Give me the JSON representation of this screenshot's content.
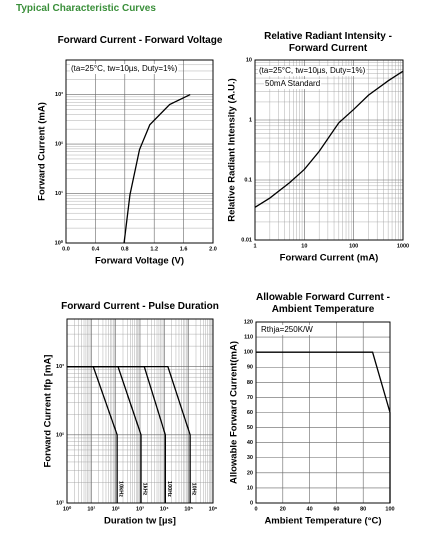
{
  "page_title": "Typical Characteristic Curves",
  "chart_data": [
    {
      "type": "line",
      "title": "Forward Current - Forward Voltage",
      "x_label": "Forward Voltage (V)",
      "y_label": "Forward Current (mA)",
      "annotations": [
        "(ta=25°C, tw=10µs, Duty=1%)"
      ],
      "xscale": "linear",
      "yscale": "log",
      "grid": true,
      "xlim": [
        0,
        2
      ],
      "xticks": [
        {
          "value": 0,
          "label": "0.0"
        },
        0.4,
        0.8,
        1.2,
        1.6,
        {
          "value": 2,
          "label": "2.0"
        }
      ],
      "ylim": [
        1,
        5000
      ],
      "yticks": [
        {
          "value": 1,
          "label": "10⁰"
        },
        {
          "value": 10,
          "label": "10¹"
        },
        {
          "value": 100,
          "label": "10²"
        },
        {
          "value": 1000,
          "label": "10³"
        }
      ],
      "series": [
        {
          "color": "#000000",
          "x": [
            0.79,
            0.87,
            1.0,
            1.14,
            1.41,
            1.69
          ],
          "values": [
            1,
            9.4,
            77,
            245,
            630,
            1000
          ]
        }
      ]
    },
    {
      "type": "line",
      "title": "Relative Radiant Intensity - Forward Current",
      "x_label": "Forward Current (mA)",
      "y_label": "Relative Radiant Intensity (A.U.)",
      "annotations": [
        "(ta=25°C, tw=10µs, Duty=1%)",
        "50mA Standard"
      ],
      "xscale": "log",
      "yscale": "log",
      "grid": true,
      "xlim": [
        1,
        1000
      ],
      "xticks": [
        1,
        10,
        100,
        1000
      ],
      "ylim": [
        0.01,
        10
      ],
      "yticks": [
        0.01,
        0.1,
        1,
        10
      ],
      "series": [
        {
          "color": "#000000",
          "x": [
            1,
            2,
            5,
            10,
            20,
            50,
            100,
            200,
            500,
            1000
          ],
          "values": [
            0.035,
            0.05,
            0.09,
            0.15,
            0.3,
            0.9,
            1.5,
            2.6,
            4.5,
            6.5
          ]
        }
      ]
    },
    {
      "type": "line",
      "title": "Forward Current - Pulse Duration",
      "x_label": "Duration tw [µs]",
      "y_label": "Forward Current Ifp [mA]",
      "annotations": [],
      "xscale": "log",
      "yscale": "log",
      "grid": true,
      "xlim": [
        1,
        1000000
      ],
      "xticks": [
        {
          "value": 1,
          "label": "10⁰"
        },
        {
          "value": 10,
          "label": "10¹"
        },
        {
          "value": 100,
          "label": "10²"
        },
        {
          "value": 1000,
          "label": "10³"
        },
        {
          "value": 10000,
          "label": "10⁴"
        },
        {
          "value": 100000,
          "label": "10⁵"
        },
        {
          "value": 1000000,
          "label": "10⁶"
        }
      ],
      "ylim": [
        10,
        5000
      ],
      "yticks": [
        {
          "value": 10,
          "label": "10¹"
        },
        {
          "value": 100,
          "label": "10²"
        },
        {
          "value": 1000,
          "label": "10³"
        }
      ],
      "series": [
        {
          "name": "10kHz",
          "color": "#000000",
          "x": [
            1,
            12,
            115,
            115
          ],
          "values": [
            1000,
            1000,
            100,
            10
          ]
        },
        {
          "name": "1kHz",
          "color": "#000000",
          "x": [
            1,
            125,
            1100,
            1100
          ],
          "values": [
            1000,
            1000,
            100,
            10
          ]
        },
        {
          "name": "100Hz",
          "color": "#000000",
          "x": [
            1,
            1500,
            11000,
            11000
          ],
          "values": [
            1000,
            1000,
            100,
            10
          ]
        },
        {
          "name": "10Hz",
          "color": "#000000",
          "x": [
            1,
            14000,
            115000,
            115000
          ],
          "values": [
            1000,
            1000,
            100,
            10
          ]
        }
      ]
    },
    {
      "type": "line",
      "title": "Allowable Forward Current - Ambient Temperature",
      "x_label": "Ambient Temperature (°C)",
      "y_label": "Allowable Forward Current(mA)",
      "annotations": [
        "Rthja=250K/W"
      ],
      "xscale": "linear",
      "yscale": "linear",
      "grid": true,
      "xlim": [
        0,
        100
      ],
      "xticks": [
        0,
        20,
        40,
        60,
        80,
        100
      ],
      "ylim": [
        0,
        120
      ],
      "yticks": [
        0,
        10,
        20,
        30,
        40,
        50,
        60,
        70,
        80,
        90,
        100,
        110,
        120
      ],
      "series": [
        {
          "color": "#000000",
          "x": [
            0,
            87,
            100,
            100
          ],
          "values": [
            100,
            100,
            60,
            0
          ]
        }
      ]
    }
  ]
}
